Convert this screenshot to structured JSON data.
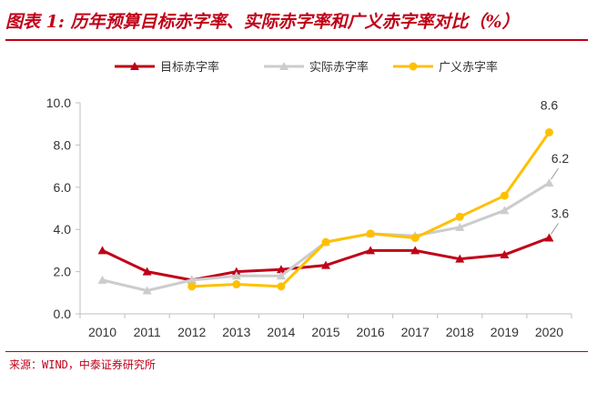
{
  "title": "图表 1: 历年预算目标赤字率、实际赤字率和广义赤字率对比（%）",
  "source": "来源：WIND，中泰证券研究所",
  "chart_data": {
    "type": "line",
    "x": [
      "2010",
      "2011",
      "2012",
      "2013",
      "2014",
      "2015",
      "2016",
      "2017",
      "2018",
      "2019",
      "2020"
    ],
    "ylim": [
      0,
      10
    ],
    "yticks": [
      "0.0",
      "2.0",
      "4.0",
      "6.0",
      "8.0",
      "10.0"
    ],
    "legend_position": "top",
    "series": [
      {
        "name": "目标赤字率",
        "color": "#c00018",
        "marker": "triangle",
        "values": [
          3.0,
          2.0,
          1.6,
          2.0,
          2.1,
          2.3,
          3.0,
          3.0,
          2.6,
          2.8,
          3.6
        ]
      },
      {
        "name": "实际赤字率",
        "color": "#cccccc",
        "marker": "triangle",
        "values": [
          1.6,
          1.1,
          1.6,
          1.8,
          1.8,
          3.4,
          3.8,
          3.7,
          4.1,
          4.9,
          6.2
        ]
      },
      {
        "name": "广义赤字率",
        "color": "#ffc000",
        "marker": "circle",
        "values": [
          null,
          null,
          1.3,
          1.4,
          1.3,
          3.4,
          3.8,
          3.6,
          4.6,
          5.6,
          8.6
        ]
      }
    ],
    "annotations": [
      "8.6",
      "6.2",
      "3.6"
    ]
  }
}
